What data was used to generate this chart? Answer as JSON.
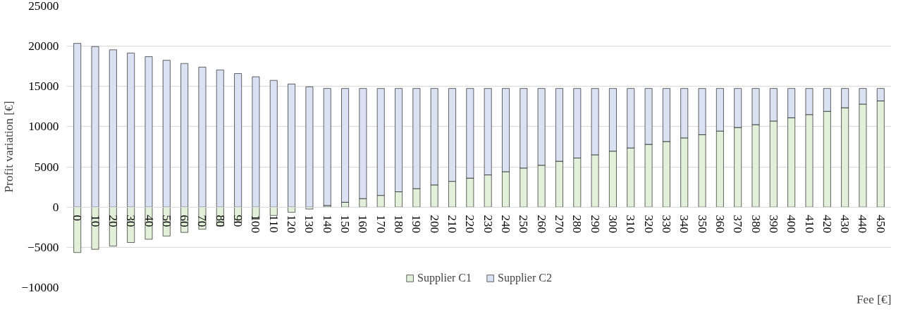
{
  "chart_data": {
    "type": "bar",
    "stacked": true,
    "xlabel": "Fee [€]",
    "ylabel": "Profit variation [€]",
    "categories": [
      "0",
      "10",
      "20",
      "30",
      "40",
      "50",
      "60",
      "70",
      "80",
      "90",
      "100",
      "110",
      "120",
      "130",
      "140",
      "150",
      "160",
      "170",
      "180",
      "190",
      "200",
      "210",
      "220",
      "230",
      "240",
      "250",
      "260",
      "270",
      "280",
      "290",
      "300",
      "310",
      "320",
      "330",
      "340",
      "350",
      "360",
      "370",
      "380",
      "390",
      "400",
      "410",
      "420",
      "430",
      "440",
      "450"
    ],
    "series": [
      {
        "name": "Supplier C1",
        "color": "#e2efd9",
        "values": [
          -5650,
          -5250,
          -4850,
          -4400,
          -4000,
          -3600,
          -3150,
          -2750,
          -2350,
          -1900,
          -1500,
          -1050,
          -650,
          -250,
          200,
          600,
          1050,
          1450,
          1900,
          2300,
          2750,
          3200,
          3600,
          4000,
          4400,
          4850,
          5200,
          5700,
          6100,
          6500,
          6950,
          7350,
          7800,
          8150,
          8600,
          9000,
          9450,
          9900,
          10250,
          10700,
          11100,
          11500,
          11900,
          12350,
          12800,
          13200
        ]
      },
      {
        "name": "Supplier C2",
        "color": "#d9e1f2",
        "values": [
          20350,
          19950,
          19550,
          19150,
          18700,
          18250,
          17850,
          17400,
          17050,
          16600,
          16200,
          15750,
          15300,
          14950,
          14550,
          14150,
          13700,
          13300,
          12850,
          12450,
          12000,
          11550,
          11150,
          10750,
          10350,
          9900,
          9550,
          9050,
          8650,
          8250,
          7800,
          7400,
          6950,
          6600,
          6150,
          5750,
          5300,
          4850,
          4500,
          4050,
          3650,
          3250,
          2850,
          2400,
          1950,
          1550
        ]
      }
    ],
    "ylim": [
      -10000,
      25000
    ],
    "yticks": [
      -10000,
      -5000,
      0,
      5000,
      10000,
      15000,
      20000,
      25000
    ],
    "grid": "y",
    "legend": "bottom"
  }
}
